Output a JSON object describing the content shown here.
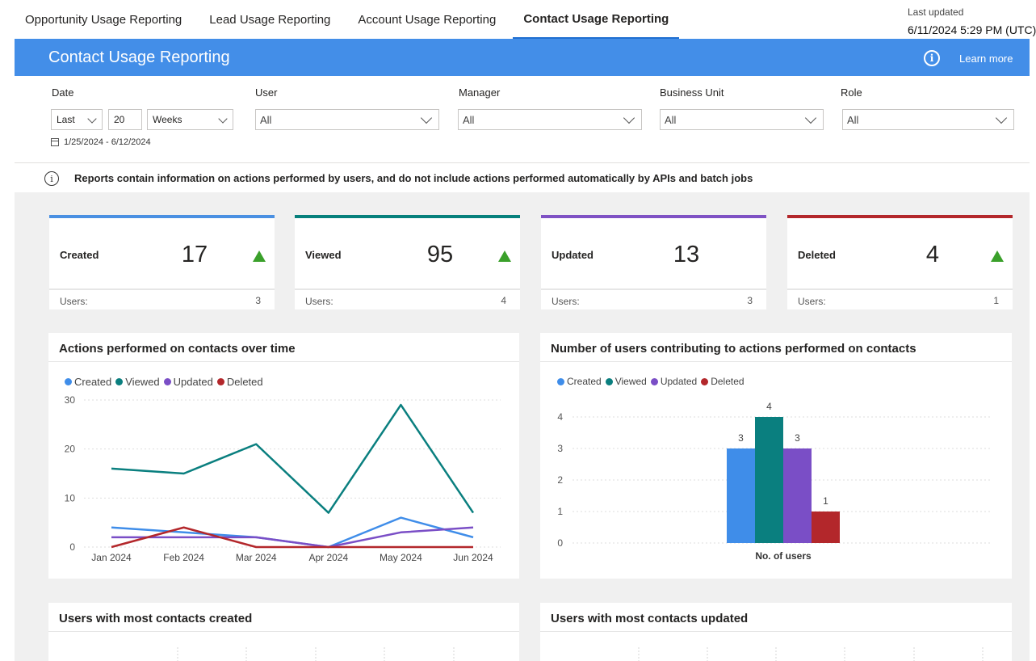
{
  "tabs": [
    {
      "label": "Opportunity Usage Reporting"
    },
    {
      "label": "Lead Usage Reporting"
    },
    {
      "label": "Account Usage Reporting"
    },
    {
      "label": "Contact Usage Reporting"
    }
  ],
  "last_updated": {
    "label": "Last updated",
    "value": "6/11/2024 5:29 PM (UTC)"
  },
  "banner": {
    "title": "Contact Usage Reporting",
    "learn_more": "Learn more"
  },
  "filters": {
    "date": {
      "label": "Date",
      "period": "Last",
      "count": "20",
      "unit": "Weeks",
      "range": "1/25/2024 - 6/12/2024"
    },
    "user": {
      "label": "User",
      "value": "All"
    },
    "manager": {
      "label": "Manager",
      "value": "All"
    },
    "business_unit": {
      "label": "Business Unit",
      "value": "All"
    },
    "role": {
      "label": "Role",
      "value": "All"
    }
  },
  "note": "Reports contain information on actions performed by users, and do not include actions performed automatically by APIs and batch jobs",
  "colors": {
    "created": "#3f8de9",
    "viewed": "#0a7f7f",
    "updated": "#7a4ec6",
    "deleted": "#b3272b",
    "up": "#3aa02a"
  },
  "kpis": [
    {
      "name": "Created",
      "value": "17",
      "users_label": "Users:",
      "users": "3",
      "color": "#4a90e2"
    },
    {
      "name": "Viewed",
      "value": "95",
      "users_label": "Users:",
      "users": "4",
      "color": "#07807c"
    },
    {
      "name": "Updated",
      "value": "13",
      "users_label": "Users:",
      "users": "3",
      "color": "#7f52c4"
    },
    {
      "name": "Deleted",
      "value": "4",
      "users_label": "Users:",
      "users": "1",
      "color": "#b3272b"
    }
  ],
  "cards": {
    "line_title": "Actions performed on contacts over time",
    "bar_title": "Number of users contributing to actions performed on contacts",
    "created_title": "Users with most contacts created",
    "updated_title": "Users with most contacts updated"
  },
  "chart_data": [
    {
      "type": "line",
      "title": "Actions performed on contacts over time",
      "categories": [
        "Jan 2024",
        "Feb 2024",
        "Mar 2024",
        "Apr 2024",
        "May 2024",
        "Jun 2024"
      ],
      "series": [
        {
          "name": "Created",
          "values": [
            4,
            3,
            2,
            0,
            6,
            2
          ]
        },
        {
          "name": "Viewed",
          "values": [
            16,
            15,
            21,
            7,
            29,
            7
          ]
        },
        {
          "name": "Updated",
          "values": [
            2,
            2,
            2,
            0,
            3,
            4
          ]
        },
        {
          "name": "Deleted",
          "values": [
            0,
            4,
            0,
            0,
            0,
            0
          ]
        }
      ],
      "yticks": [
        0,
        10,
        20,
        30
      ],
      "ylim": [
        0,
        30
      ],
      "legend": "top-left",
      "grid": true
    },
    {
      "type": "bar",
      "title": "Number of users contributing to actions performed on contacts",
      "categories": [
        "No. of users"
      ],
      "series": [
        {
          "name": "Created",
          "values": [
            3
          ]
        },
        {
          "name": "Viewed",
          "values": [
            4
          ]
        },
        {
          "name": "Updated",
          "values": [
            3
          ]
        },
        {
          "name": "Deleted",
          "values": [
            1
          ]
        }
      ],
      "yticks": [
        0,
        1,
        2,
        3,
        4
      ],
      "ylim": [
        0,
        4
      ],
      "legend": "top-left",
      "grid": true,
      "data_labels": true
    }
  ]
}
